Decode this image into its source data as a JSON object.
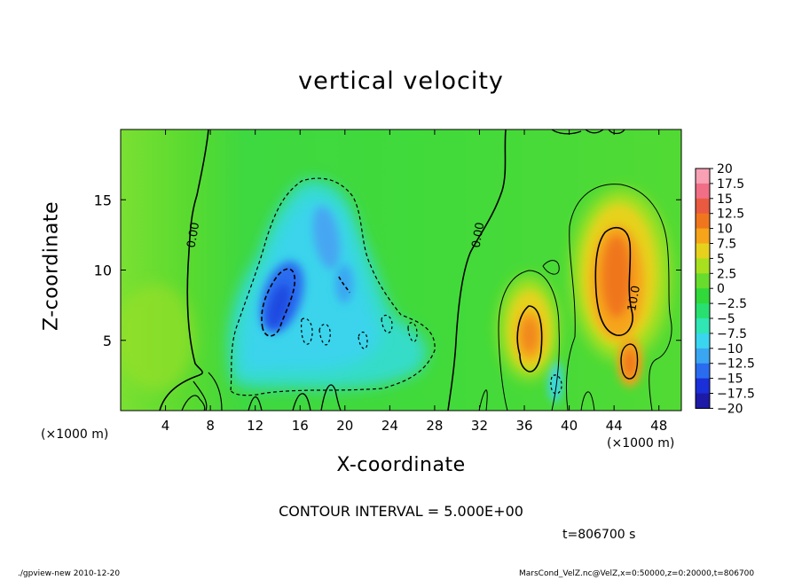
{
  "title": "vertical velocity",
  "colors": {
    "ramp": [
      "#6a1fb0",
      "#1d1aa8",
      "#1a2fd8",
      "#2a6cf0",
      "#3aa6f2",
      "#3ad6f0",
      "#2fe6b4",
      "#28e070",
      "#30d83a",
      "#68dc2c",
      "#a8e020",
      "#e6d21c",
      "#f6a41a",
      "#f0761e",
      "#ea5a40",
      "#f06e86",
      "#f8a0b4"
    ]
  },
  "chart_data": {
    "type": "heatmap",
    "title": "vertical velocity",
    "xlabel": "X-coordinate",
    "ylabel": "Z-coordinate",
    "x_unit": "(×1000 m)",
    "xlim": [
      0,
      50
    ],
    "ylim": [
      0,
      20
    ],
    "x_ticks": [
      4,
      8,
      12,
      16,
      20,
      24,
      28,
      32,
      36,
      40,
      44,
      48
    ],
    "y_ticks": [
      5,
      10,
      15
    ],
    "contour_interval": "CONTOUR INTERVAL = 5.000E+00",
    "contour_labels": [
      {
        "text": "0.00",
        "x": 6.4,
        "y": 12.5
      },
      {
        "text": "0.00",
        "x": 31.8,
        "y": 12.5
      },
      {
        "text": "10.0",
        "x": 45.7,
        "y": 8.0
      }
    ],
    "colorbar": {
      "labels": [
        "20",
        "17.5",
        "15",
        "12.5",
        "10",
        "7.5",
        "5",
        "2.5",
        "0",
        "−2.5",
        "−5",
        "−7.5",
        "−10",
        "−12.5",
        "−15",
        "−17.5",
        "−20"
      ],
      "range": [
        -20,
        20
      ]
    },
    "features": [
      {
        "kind": "updraft",
        "x": 36.3,
        "z": 5.7,
        "peak": 10
      },
      {
        "kind": "updraft",
        "x": 44.4,
        "z": 9.3,
        "peak": 12
      },
      {
        "kind": "updraft",
        "x": 44.8,
        "z": 3.6,
        "peak": 10
      },
      {
        "kind": "downdraft",
        "x": 13.8,
        "z": 7.5,
        "peak": -11
      },
      {
        "kind": "downdraft",
        "x": 18.2,
        "z": 11.0,
        "peak": -8
      }
    ]
  },
  "time_label": "t=806700 s",
  "footer_left": "./gpview-new  2010-12-20",
  "footer_right": "MarsCond_VelZ.nc@VelZ,x=0:50000,z=0:20000,t=806700"
}
